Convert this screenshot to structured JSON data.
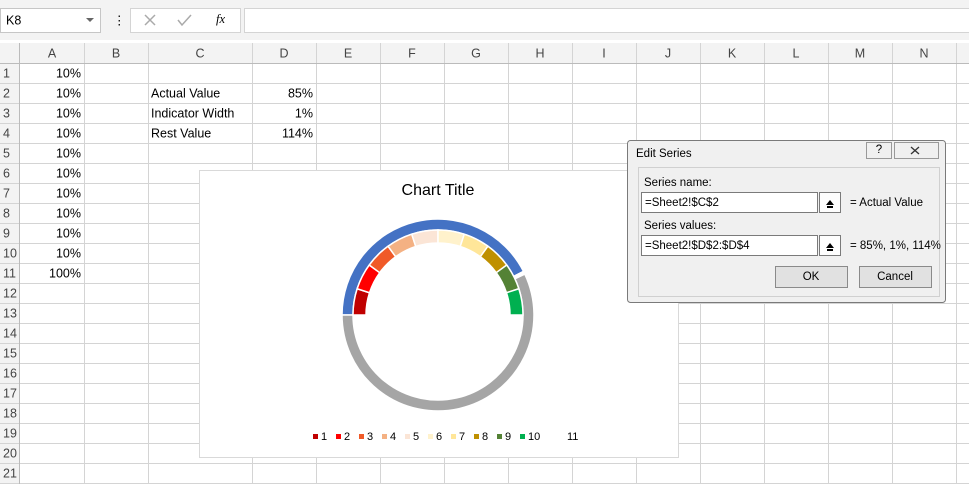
{
  "name_box": "K8",
  "function_label": "fx",
  "columns": [
    "A",
    "B",
    "C",
    "D",
    "E",
    "F",
    "G",
    "H",
    "I",
    "J",
    "K",
    "L",
    "M",
    "N"
  ],
  "rows": [
    1,
    2,
    3,
    4,
    5,
    6,
    7,
    8,
    9,
    10,
    11,
    12,
    13,
    14,
    15,
    16,
    17,
    18,
    19,
    20,
    21
  ],
  "cells": {
    "A1": "10%",
    "A2": "10%",
    "A3": "10%",
    "A4": "10%",
    "A5": "10%",
    "A6": "10%",
    "A7": "10%",
    "A8": "10%",
    "A9": "10%",
    "A10": "10%",
    "A11": "100%",
    "C2": "Actual Value",
    "D2": "85%",
    "C3": "Indicator Width",
    "D3": "1%",
    "C4": "Rest Value",
    "D4": "114%"
  },
  "chart": {
    "title": "Chart Title",
    "outer_ring": {
      "values": [
        85,
        1,
        114
      ],
      "colors": [
        "#4472c4",
        "#ffffff",
        "#a5a5a5"
      ]
    },
    "inner_ring": {
      "values": [
        10,
        10,
        10,
        10,
        10,
        10,
        10,
        10,
        10,
        10,
        100
      ],
      "colors": [
        "#c00000",
        "#ff0000",
        "#f05a28",
        "#f4b183",
        "#fbe5d6",
        "#fff2cc",
        "#ffe699",
        "#bf9000",
        "#548235",
        "#00b050",
        null
      ]
    },
    "legend": [
      "1",
      "2",
      "3",
      "4",
      "5",
      "6",
      "7",
      "8",
      "9",
      "10",
      "11"
    ]
  },
  "dialog": {
    "title": "Edit Series",
    "help": "?",
    "series_name_label": "Series name:",
    "series_name_ref": "=Sheet2!$C$2",
    "series_name_result": "= Actual Value",
    "series_values_label": "Series values:",
    "series_values_ref": "=Sheet2!$D$2:$D$4",
    "series_values_result": "= 85%, 1%, 114%",
    "ok": "OK",
    "cancel": "Cancel"
  }
}
